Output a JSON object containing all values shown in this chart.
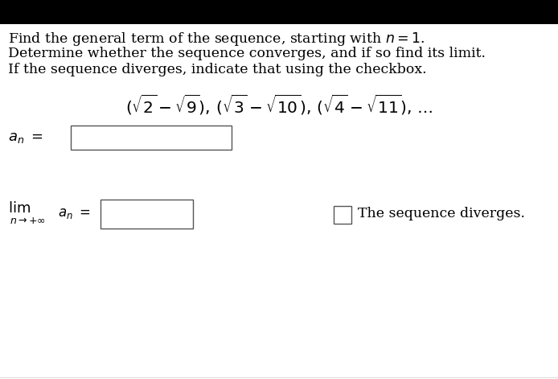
{
  "background_color": "#ffffff",
  "top_bar_color": "#000000",
  "instructions": [
    "Find the general term of the sequence, starting with $n = 1$.",
    "Determine whether the sequence converges, and if so find its limit.",
    "If the sequence diverges, indicate that using the checkbox."
  ],
  "sequence_expr": "$(\\sqrt{2} - \\sqrt{9}),\\, (\\sqrt{3} - \\sqrt{10}),\\, (\\sqrt{4} - \\sqrt{11}),\\, \\ldots$",
  "diverges_text": "The sequence diverges.",
  "instr_fontsize": 12.5,
  "seq_fontsize": 14.5,
  "an_fontsize": 13,
  "lim_fontsize": 12,
  "lim_sub_fontsize": 9,
  "div_fontsize": 12.5
}
